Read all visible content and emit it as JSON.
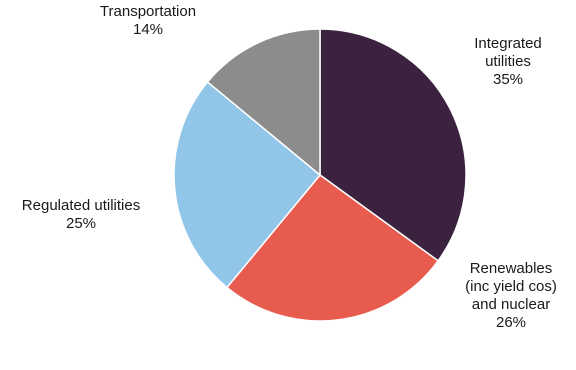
{
  "chart_data": {
    "type": "pie",
    "title": "",
    "slices": [
      {
        "label_lines": [
          "Integrated",
          "utilities"
        ],
        "value": 35,
        "value_label": "35%",
        "color": "#3b2340"
      },
      {
        "label_lines": [
          "Renewables",
          "(inc yield cos)",
          "and nuclear"
        ],
        "value": 26,
        "value_label": "26%",
        "color": "#e85c4f"
      },
      {
        "label_lines": [
          "Regulated utilities"
        ],
        "value": 25,
        "value_label": "25%",
        "color": "#92c6e8"
      },
      {
        "label_lines": [
          "Transportation"
        ],
        "value": 14,
        "value_label": "14%",
        "color": "#8c8c8c"
      }
    ],
    "start": "12 o'clock",
    "direction": "clockwise",
    "legend": "none"
  }
}
